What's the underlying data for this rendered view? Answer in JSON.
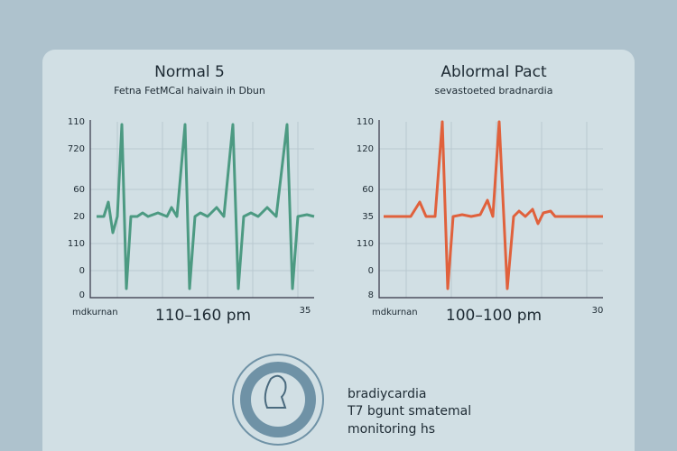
{
  "left_panel": {
    "title": "Normal 5",
    "subtitle": "Fetna FetMCal haivain ih Dbun",
    "y_labels": [
      "110",
      "720",
      "60",
      "20",
      "110",
      "0",
      "0"
    ],
    "x_left": "mdkurnan",
    "x_center": "110–160 pm",
    "x_right": "35"
  },
  "right_panel": {
    "title": "Ablormal Pact",
    "subtitle": "sevastoeted bradnardia",
    "y_labels": [
      "110",
      "120",
      "60",
      "35",
      "110",
      "0",
      "8"
    ],
    "x_left": "mdkurnan",
    "x_center": "100–100 pm",
    "x_right": "30"
  },
  "caption": {
    "lines": [
      "bradiycardia",
      "T7 bgunt smatemal",
      "monitoring hs"
    ]
  }
}
